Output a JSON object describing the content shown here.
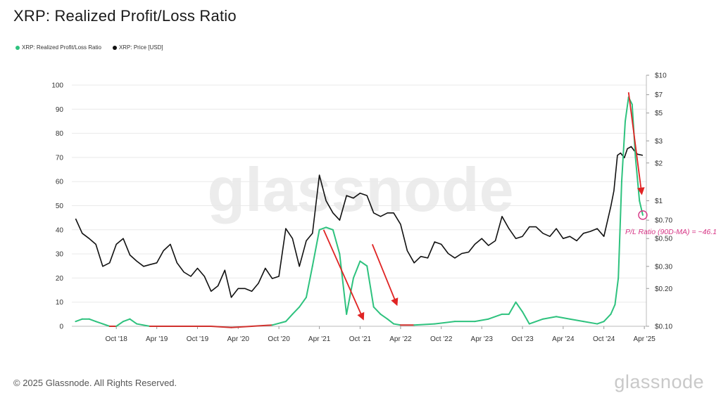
{
  "title": "XRP: Realized Profit/Loss Ratio",
  "footer": {
    "copyright": "© 2025 Glassnode. All Rights Reserved.",
    "logo": "glassnode"
  },
  "watermark": "glassnode",
  "colors": {
    "ratio_high": "#2ec27e",
    "ratio_low": "#d0312d",
    "price": "#111111",
    "arrow": "#e02424",
    "annotation": "#d63384"
  },
  "chart_data": {
    "type": "line",
    "title": "XRP: Realized Profit/Loss Ratio",
    "legend_position": "top-left",
    "grid": true,
    "x_ticks": [
      "Oct '18",
      "Apr '19",
      "Oct '19",
      "Apr '20",
      "Oct '20",
      "Apr '21",
      "Oct '21",
      "Apr '22",
      "Oct '22",
      "Apr '23",
      "Oct '23",
      "Apr '24",
      "Oct '24",
      "Apr '25"
    ],
    "y_left": {
      "range": [
        0,
        100
      ],
      "ticks": [
        "0",
        "10",
        "20",
        "30",
        "40",
        "50",
        "60",
        "70",
        "80",
        "90",
        "100"
      ]
    },
    "y_right": {
      "scale": "log",
      "range": [
        0.1,
        10
      ],
      "ticks": [
        {
          "label": "$0.10",
          "value": 0.1
        },
        {
          "label": "$0.20",
          "value": 0.2
        },
        {
          "label": "$0.30",
          "value": 0.3
        },
        {
          "label": "$0.50",
          "value": 0.5
        },
        {
          "label": "$0.70",
          "value": 0.7
        },
        {
          "label": "$1",
          "value": 1
        },
        {
          "label": "$2",
          "value": 2
        },
        {
          "label": "$3",
          "value": 3
        },
        {
          "label": "$5",
          "value": 5
        },
        {
          "label": "$7",
          "value": 7
        },
        {
          "label": "$10",
          "value": 10
        }
      ]
    },
    "series": [
      {
        "name": "XRP: Realized Profit/Loss Ratio",
        "axis": "left",
        "x": [
          "2018-04-01",
          "2018-05-01",
          "2018-06-01",
          "2018-07-01",
          "2018-08-01",
          "2018-09-01",
          "2018-10-01",
          "2018-11-01",
          "2018-12-01",
          "2019-01-01",
          "2019-03-01",
          "2019-06-01",
          "2019-09-01",
          "2019-12-01",
          "2020-03-01",
          "2020-06-01",
          "2020-09-01",
          "2020-11-01",
          "2020-12-01",
          "2021-01-01",
          "2021-02-01",
          "2021-03-01",
          "2021-04-01",
          "2021-05-01",
          "2021-06-01",
          "2021-07-01",
          "2021-08-01",
          "2021-09-01",
          "2021-10-01",
          "2021-11-01",
          "2021-12-01",
          "2022-01-01",
          "2022-02-01",
          "2022-03-01",
          "2022-04-01",
          "2022-06-01",
          "2022-09-01",
          "2022-12-01",
          "2023-03-01",
          "2023-05-01",
          "2023-07-01",
          "2023-08-01",
          "2023-09-01",
          "2023-10-01",
          "2023-11-01",
          "2024-01-01",
          "2024-03-01",
          "2024-05-01",
          "2024-07-01",
          "2024-09-01",
          "2024-10-01",
          "2024-11-01",
          "2024-11-20",
          "2024-12-05",
          "2024-12-20",
          "2025-01-05",
          "2025-01-20",
          "2025-02-05",
          "2025-02-20",
          "2025-03-10",
          "2025-03-25"
        ],
        "values": [
          2,
          3,
          3,
          2,
          1,
          0,
          0,
          2,
          3,
          1,
          0,
          0,
          0,
          0,
          -0.5,
          0,
          0.5,
          2,
          5,
          8,
          12,
          25,
          40,
          41,
          40,
          30,
          5,
          20,
          27,
          25,
          8,
          5,
          3,
          1,
          0.5,
          0.5,
          1,
          2,
          2,
          3,
          5,
          5,
          10,
          6,
          1,
          3,
          4,
          3,
          2,
          1,
          2,
          5,
          9,
          20,
          60,
          85,
          95,
          92,
          70,
          52,
          46.1
        ]
      },
      {
        "name": "XRP: Price [USD]",
        "axis": "right",
        "x": [
          "2018-04-01",
          "2018-05-01",
          "2018-06-01",
          "2018-07-01",
          "2018-08-01",
          "2018-09-01",
          "2018-10-01",
          "2018-11-01",
          "2018-12-01",
          "2019-01-01",
          "2019-02-01",
          "2019-03-01",
          "2019-04-01",
          "2019-05-01",
          "2019-06-01",
          "2019-07-01",
          "2019-08-01",
          "2019-09-01",
          "2019-10-01",
          "2019-11-01",
          "2019-12-01",
          "2020-01-01",
          "2020-02-01",
          "2020-03-01",
          "2020-04-01",
          "2020-05-01",
          "2020-06-01",
          "2020-07-01",
          "2020-08-01",
          "2020-09-01",
          "2020-10-01",
          "2020-11-01",
          "2020-12-01",
          "2021-01-01",
          "2021-02-01",
          "2021-03-01",
          "2021-04-01",
          "2021-05-01",
          "2021-06-01",
          "2021-07-01",
          "2021-08-01",
          "2021-09-01",
          "2021-10-01",
          "2021-11-01",
          "2021-12-01",
          "2022-01-01",
          "2022-02-01",
          "2022-03-01",
          "2022-04-01",
          "2022-05-01",
          "2022-06-01",
          "2022-07-01",
          "2022-08-01",
          "2022-09-01",
          "2022-10-01",
          "2022-11-01",
          "2022-12-01",
          "2023-01-01",
          "2023-02-01",
          "2023-03-01",
          "2023-04-01",
          "2023-05-01",
          "2023-06-01",
          "2023-07-01",
          "2023-08-01",
          "2023-09-01",
          "2023-10-01",
          "2023-11-01",
          "2023-12-01",
          "2024-01-01",
          "2024-02-01",
          "2024-03-01",
          "2024-04-01",
          "2024-05-01",
          "2024-06-01",
          "2024-07-01",
          "2024-08-01",
          "2024-09-01",
          "2024-10-01",
          "2024-11-01",
          "2024-11-15",
          "2024-12-01",
          "2024-12-15",
          "2025-01-01",
          "2025-01-15",
          "2025-02-01",
          "2025-02-15",
          "2025-03-01",
          "2025-03-25"
        ],
        "values": [
          0.72,
          0.55,
          0.5,
          0.45,
          0.3,
          0.32,
          0.45,
          0.5,
          0.37,
          0.33,
          0.3,
          0.31,
          0.32,
          0.4,
          0.45,
          0.32,
          0.27,
          0.25,
          0.29,
          0.25,
          0.19,
          0.21,
          0.28,
          0.17,
          0.2,
          0.2,
          0.19,
          0.22,
          0.29,
          0.24,
          0.25,
          0.6,
          0.5,
          0.3,
          0.48,
          0.55,
          1.6,
          1.0,
          0.8,
          0.7,
          1.1,
          1.05,
          1.15,
          1.1,
          0.8,
          0.75,
          0.8,
          0.8,
          0.65,
          0.4,
          0.32,
          0.36,
          0.35,
          0.47,
          0.45,
          0.38,
          0.35,
          0.38,
          0.39,
          0.45,
          0.5,
          0.44,
          0.48,
          0.75,
          0.6,
          0.5,
          0.52,
          0.62,
          0.62,
          0.55,
          0.52,
          0.6,
          0.5,
          0.52,
          0.48,
          0.55,
          0.57,
          0.6,
          0.52,
          0.9,
          1.2,
          2.3,
          2.4,
          2.2,
          2.6,
          2.7,
          2.5,
          2.35,
          2.3
        ]
      }
    ],
    "annotations": [
      {
        "type": "text",
        "text": "P/L Ratio (90D-MA) = ~46.1",
        "x": "2025-03-25",
        "y": 46.1
      }
    ],
    "arrows": [
      {
        "from": {
          "x": "2021-04-20",
          "y": 40
        },
        "to": {
          "x": "2021-10-15",
          "y": 3
        }
      },
      {
        "from": {
          "x": "2021-11-25",
          "y": 34
        },
        "to": {
          "x": "2022-03-15",
          "y": 9
        }
      },
      {
        "from": {
          "x": "2025-01-20",
          "y": 97
        },
        "to": {
          "x": "2025-03-20",
          "y": 55
        }
      }
    ]
  }
}
